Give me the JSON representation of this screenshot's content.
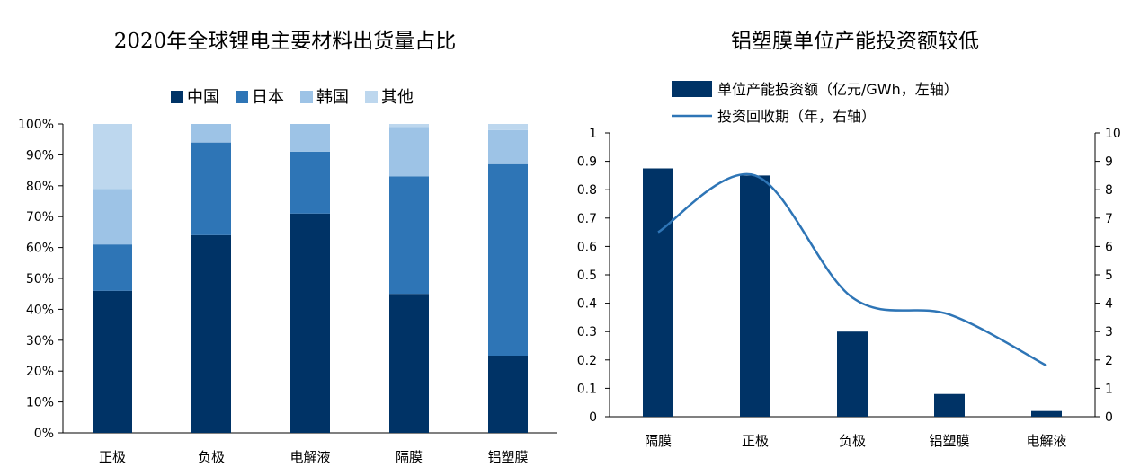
{
  "charts": [
    {
      "title": "2020年全球锂电主要材料出货量占比",
      "chart_data": {
        "type": "bar",
        "stacked": true,
        "categories": [
          "正极",
          "负极",
          "电解液",
          "隔膜",
          "铝塑膜"
        ],
        "series": [
          {
            "name": "中国",
            "values": [
              46,
              64,
              71,
              45,
              25
            ],
            "color": "#003366"
          },
          {
            "name": "日本",
            "values": [
              15,
              30,
              20,
              38,
              62
            ],
            "color": "#2E75B6"
          },
          {
            "name": "韩国",
            "values": [
              18,
              6,
              9,
              16,
              11
            ],
            "color": "#9DC3E6"
          },
          {
            "name": "其他",
            "values": [
              21,
              0,
              0,
              1,
              2
            ],
            "color": "#BDD7EE"
          }
        ],
        "ylim": [
          0,
          100
        ],
        "yticks": [
          "0%",
          "10%",
          "20%",
          "30%",
          "40%",
          "50%",
          "60%",
          "70%",
          "80%",
          "90%",
          "100%"
        ],
        "legend_position": "top"
      }
    },
    {
      "title": "铝塑膜单位产能投资额较低",
      "chart_data": {
        "type": "bar",
        "categories": [
          "隔膜",
          "正极",
          "负极",
          "铝塑膜",
          "电解液"
        ],
        "series": [
          {
            "name": "单位产能投资额（亿元/GWh，左轴）",
            "type": "bar",
            "axis": "left",
            "values": [
              0.875,
              0.85,
              0.3,
              0.08,
              0.02
            ],
            "color": "#003366"
          },
          {
            "name": "投资回收期（年，右轴）",
            "type": "line",
            "axis": "right",
            "values": [
              6.5,
              8.5,
              4.2,
              3.6,
              1.8
            ],
            "color": "#2E75B6"
          }
        ],
        "ylim_left": [
          0,
          1
        ],
        "yticks_left": [
          "0",
          "0.1",
          "0.2",
          "0.3",
          "0.4",
          "0.5",
          "0.6",
          "0.7",
          "0.8",
          "0.9",
          "1"
        ],
        "ylim_right": [
          0,
          10
        ],
        "yticks_right": [
          "0",
          "1",
          "2",
          "3",
          "4",
          "5",
          "6",
          "7",
          "8",
          "9",
          "10"
        ],
        "legend_position": "top-left"
      }
    }
  ]
}
